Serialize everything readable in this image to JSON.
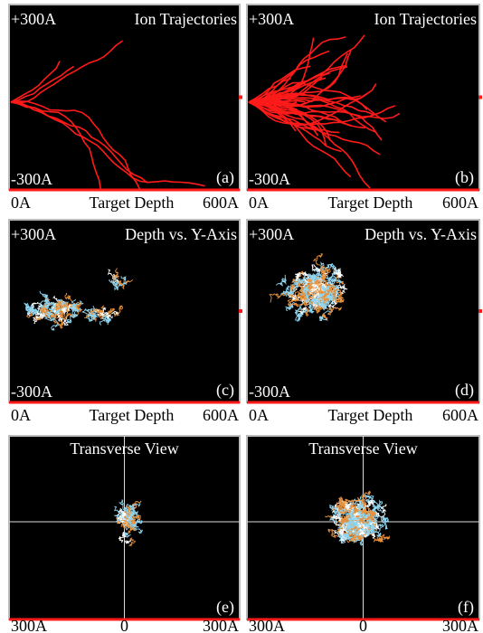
{
  "panels": [
    {
      "title": "Ion Trajectories",
      "top_label": "+300A",
      "bottom_label": "-300A",
      "tag": "(a)",
      "x_axis": {
        "left": "0A",
        "center": "Target Depth",
        "right": "600A"
      }
    },
    {
      "title": "Ion Trajectories",
      "top_label": "+300A",
      "bottom_label": "-300A",
      "tag": "(b)",
      "x_axis": {
        "left": "0A",
        "center": "Target Depth",
        "right": "600A"
      }
    },
    {
      "title": "Depth vs. Y-Axis",
      "top_label": "+300A",
      "bottom_label": "-300A",
      "tag": "(c)",
      "x_axis": {
        "left": "0A",
        "center": "Target Depth",
        "right": "600A"
      }
    },
    {
      "title": "Depth vs. Y-Axis",
      "top_label": "+300A",
      "bottom_label": "-300A",
      "tag": "(d)",
      "x_axis": {
        "left": "0A",
        "center": "Target Depth",
        "right": "600A"
      }
    },
    {
      "title": "Transverse View",
      "tag": "(e)",
      "x_axis": {
        "left": "300A",
        "center": "0",
        "right": "300A"
      }
    },
    {
      "title": "Transverse View",
      "tag": "(f)",
      "x_axis": {
        "left": "300A",
        "center": "0",
        "right": "300A"
      }
    }
  ]
}
